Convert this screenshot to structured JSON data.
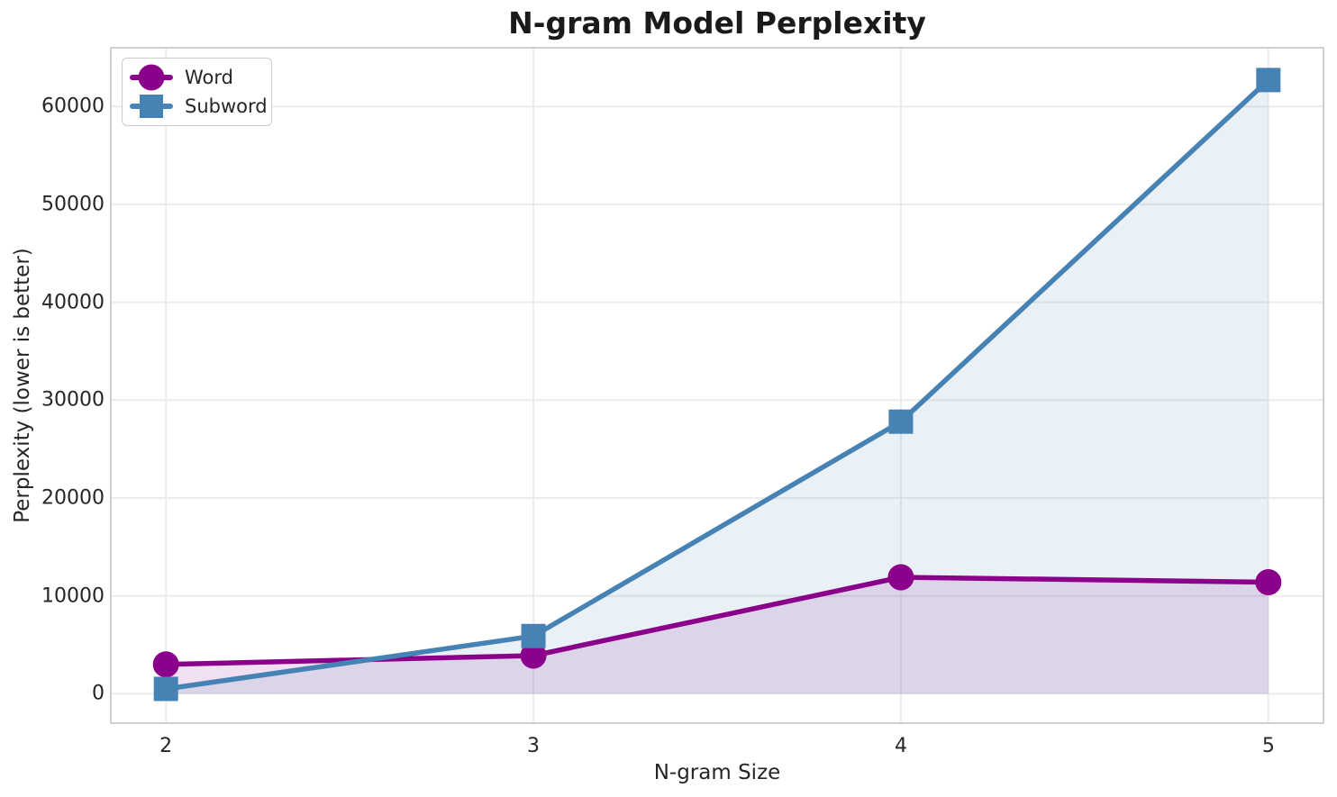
{
  "title": "N-gram Model Perplexity",
  "chart_data": {
    "type": "line",
    "title": "N-gram Model Perplexity",
    "xlabel": "N-gram Size",
    "ylabel": "Perplexity (lower is better)",
    "x": [
      2,
      3,
      4,
      5
    ],
    "series": [
      {
        "name": "Word",
        "values": [
          3000,
          3900,
          11900,
          11400
        ],
        "color": "#8B008B",
        "marker": "circle",
        "area_fill": true,
        "fill_alpha": 0.12
      },
      {
        "name": "Subword",
        "values": [
          500,
          5900,
          27800,
          62700
        ],
        "color": "#4682B4",
        "marker": "square",
        "area_fill": true,
        "fill_alpha": 0.12
      }
    ],
    "xticks": [
      "2",
      "3",
      "4",
      "5"
    ],
    "xtick_values": [
      2,
      3,
      4,
      5
    ],
    "yticks": [
      "0",
      "10000",
      "20000",
      "30000",
      "40000",
      "50000",
      "60000"
    ],
    "ytick_values": [
      0,
      10000,
      20000,
      30000,
      40000,
      50000,
      60000
    ],
    "xlim": [
      1.85,
      5.15
    ],
    "ylim": [
      -3000,
      66000
    ],
    "grid": true,
    "legend_position": "upper left",
    "area_baseline": 0
  },
  "colors": {
    "background": "#FFFFFF",
    "grid": "#ECECEC",
    "spine": "#D0D0D0",
    "tick_text": "#262626",
    "title_text": "#1A1A1A"
  }
}
